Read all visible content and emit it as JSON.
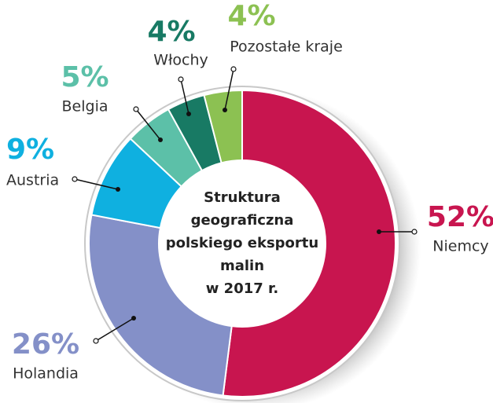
{
  "chart_data": {
    "type": "donut",
    "title": [
      "Struktura",
      "geograficzna",
      "polskiego eksportu",
      "malin",
      "w 2017 r."
    ],
    "categories": [
      "Niemcy",
      "Holandia",
      "Austria",
      "Belgia",
      "Włochy",
      "Pozostałe kraje"
    ],
    "values": [
      52,
      26,
      9,
      5,
      4,
      4
    ],
    "value_labels": [
      "52%",
      "26%",
      "9%",
      "5%",
      "4%",
      "4%"
    ],
    "colors": [
      "#c8154f",
      "#8490c8",
      "#0fb0e0",
      "#5cc0a8",
      "#187a64",
      "#8cc152"
    ]
  }
}
